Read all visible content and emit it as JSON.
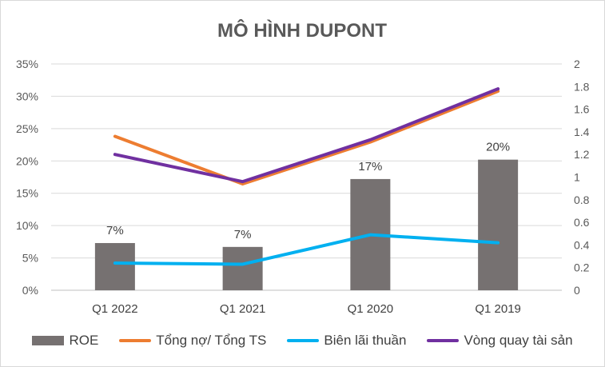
{
  "chart_data": {
    "type": "bar+line",
    "title": "MÔ HÌNH DUPONT",
    "categories": [
      "Q1 2022",
      "Q1 2021",
      "Q1 2020",
      "Q1 2019"
    ],
    "left_axis": {
      "ylim": [
        0,
        35
      ],
      "ticks": [
        0,
        5,
        10,
        15,
        20,
        25,
        30,
        35
      ],
      "tick_labels": [
        "0%",
        "5%",
        "10%",
        "15%",
        "20%",
        "25%",
        "30%",
        "35%"
      ]
    },
    "right_axis": {
      "ylim": [
        0,
        2
      ],
      "ticks": [
        0,
        0.2,
        0.4,
        0.6,
        0.8,
        1,
        1.2,
        1.4,
        1.6,
        1.8,
        2
      ],
      "tick_labels": [
        "0",
        "0.2",
        "0.4",
        "0.6",
        "0.8",
        "1",
        "1.2",
        "1.4",
        "1.6",
        "1.8",
        "2"
      ]
    },
    "grid": "horizontal",
    "series": [
      {
        "name": "ROE",
        "kind": "bar",
        "axis": "left",
        "color": "#767171",
        "values": [
          7.3,
          6.7,
          17.2,
          20.2
        ],
        "labels": [
          "7%",
          "7%",
          "17%",
          "20%"
        ]
      },
      {
        "name": "Tổng nợ/ Tổng TS",
        "kind": "line",
        "axis": "right",
        "color": "#ed7d31",
        "values": [
          1.36,
          0.94,
          1.31,
          1.76
        ]
      },
      {
        "name": "Biên lãi thuần",
        "kind": "line",
        "axis": "right",
        "color": "#00b0f0",
        "values": [
          0.24,
          0.23,
          0.49,
          0.42
        ]
      },
      {
        "name": "Vòng quay tài sản",
        "kind": "line",
        "axis": "right",
        "color": "#7030a0",
        "values": [
          1.2,
          0.96,
          1.33,
          1.78
        ]
      }
    ]
  }
}
